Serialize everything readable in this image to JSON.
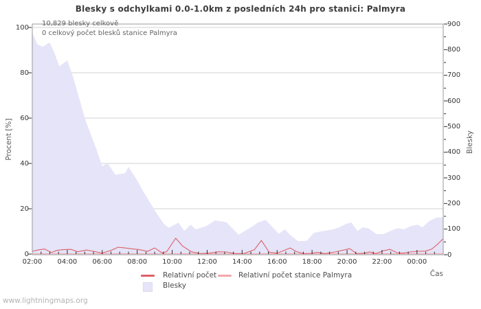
{
  "watermark": "www.lightningmaps.org",
  "chart_data": {
    "type": "area",
    "title": "Blesky s odchylkami 0.0-1.0km z posledních 24h pro stanici: Palmyra",
    "xlabel": "Čas",
    "annotations": [
      "10,829 blesky celkově",
      "0 celkový počet blesků stanice Palmyra"
    ],
    "x_range_hours": [
      2,
      25.5
    ],
    "x_minor_step_hours": 0.5,
    "x_ticks_hours": [
      2,
      4,
      6,
      8,
      10,
      12,
      14,
      16,
      18,
      20,
      22,
      24
    ],
    "x_ticklabels": [
      "02:00",
      "04:00",
      "06:00",
      "08:00",
      "10:00",
      "12:00",
      "14:00",
      "16:00",
      "18:00",
      "20:00",
      "22:00",
      "00:00"
    ],
    "y_left": {
      "label": "Procent  [%]",
      "range": [
        0,
        100
      ],
      "ticks": [
        0,
        20,
        40,
        60,
        80,
        100
      ],
      "ticklabels": [
        "0",
        "20",
        "40",
        "60",
        "80",
        "100"
      ]
    },
    "y_right": {
      "label": "Blesky",
      "range": [
        0,
        900
      ],
      "minor_step": 50,
      "ticks": [
        0,
        100,
        200,
        300,
        400,
        500,
        600,
        700,
        800,
        900
      ],
      "ticklabels": [
        "0",
        "100",
        "200",
        "300",
        "400",
        "500",
        "600",
        "700",
        "800",
        "900"
      ]
    },
    "grid": "horizontal-only",
    "legend_position": "bottom-center",
    "legend": [
      {
        "label": "Relativní počet",
        "swatch": "line",
        "color": "#dd6066"
      },
      {
        "label": "Relativní počet stanice Palmyra",
        "swatch": "line",
        "color": "#f2a7ab"
      },
      {
        "label": "Blesky",
        "swatch": "box",
        "color": "#e5e4f8"
      }
    ],
    "series": [
      {
        "name": "Blesky",
        "type": "area",
        "axis": "right",
        "color": "#e5e4f8",
        "t": [
          2.0,
          2.3,
          2.6,
          3.0,
          3.25,
          3.55,
          4.0,
          4.35,
          5.05,
          5.65,
          6.0,
          6.3,
          6.75,
          7.3,
          7.5,
          8.0,
          8.3,
          9.05,
          9.5,
          9.8,
          10.35,
          10.7,
          11.05,
          11.35,
          11.95,
          12.45,
          13.1,
          13.45,
          13.8,
          14.5,
          14.9,
          15.35,
          15.75,
          16.1,
          16.45,
          16.75,
          17.2,
          17.7,
          18.1,
          18.5,
          19.2,
          19.55,
          20.0,
          20.25,
          20.6,
          20.9,
          21.2,
          21.7,
          22.1,
          22.5,
          22.9,
          23.25,
          23.65,
          24.05,
          24.3,
          24.7,
          25.1,
          25.5
        ],
        "values": [
          865,
          820,
          812,
          828,
          790,
          735,
          758,
          690,
          522,
          415,
          345,
          358,
          312,
          318,
          342,
          290,
          252,
          168,
          122,
          105,
          125,
          93,
          117,
          99,
          112,
          134,
          127,
          102,
          78,
          107,
          125,
          136,
          107,
          82,
          99,
          77,
          53,
          54,
          85,
          91,
          99,
          107,
          122,
          125,
          93,
          107,
          104,
          80,
          81,
          93,
          104,
          99,
          112,
          117,
          107,
          131,
          144,
          147
        ]
      },
      {
        "name": "Relativní počet",
        "type": "line",
        "axis": "left",
        "color": "#dd6066",
        "t": [
          2.0,
          2.4,
          2.7,
          3.1,
          3.4,
          3.7,
          4.2,
          4.6,
          5.1,
          5.5,
          6.0,
          6.5,
          6.9,
          7.3,
          7.8,
          8.1,
          8.6,
          9.0,
          9.45,
          9.7,
          10.2,
          10.6,
          11.1,
          11.6,
          12.2,
          12.6,
          13.1,
          13.6,
          14.1,
          14.7,
          15.1,
          15.55,
          16.0,
          16.4,
          16.75,
          17.1,
          17.5,
          17.9,
          18.3,
          18.75,
          19.3,
          19.9,
          20.15,
          20.55,
          21.0,
          21.3,
          21.65,
          22.1,
          22.45,
          22.85,
          23.2,
          23.6,
          24.05,
          24.5,
          24.85,
          25.2,
          25.5
        ],
        "values": [
          1.2,
          1.9,
          2.2,
          0.7,
          1.6,
          1.9,
          2.1,
          1.0,
          1.8,
          1.2,
          0.4,
          1.6,
          3.0,
          2.7,
          2.2,
          2.0,
          1.2,
          2.7,
          0.4,
          1.2,
          7.0,
          3.5,
          1.0,
          0.2,
          0.5,
          1.0,
          0.9,
          0.2,
          0.2,
          1.9,
          6.0,
          0.8,
          0.4,
          1.6,
          2.7,
          1.1,
          0.2,
          0.3,
          0.8,
          0.2,
          0.9,
          1.9,
          2.4,
          0.2,
          0.4,
          0.9,
          0.2,
          1.5,
          2.1,
          0.6,
          0.4,
          0.9,
          1.2,
          1.3,
          2.2,
          4.5,
          6.8
        ]
      },
      {
        "name": "Relativní počet stanice Palmyra",
        "type": "line",
        "axis": "left",
        "color": "#f2a7ab",
        "t": [
          2.0,
          25.5
        ],
        "values": [
          0,
          0
        ]
      }
    ],
    "colors": {
      "background": "#ffffff",
      "plot_border": "#9a9a9a",
      "gridline": "#d2d2d2",
      "tick": "#2a2a2a",
      "area_fill": "#e5e4f8",
      "line_main": "#dd6066",
      "line_station": "#f2a7ab"
    }
  }
}
